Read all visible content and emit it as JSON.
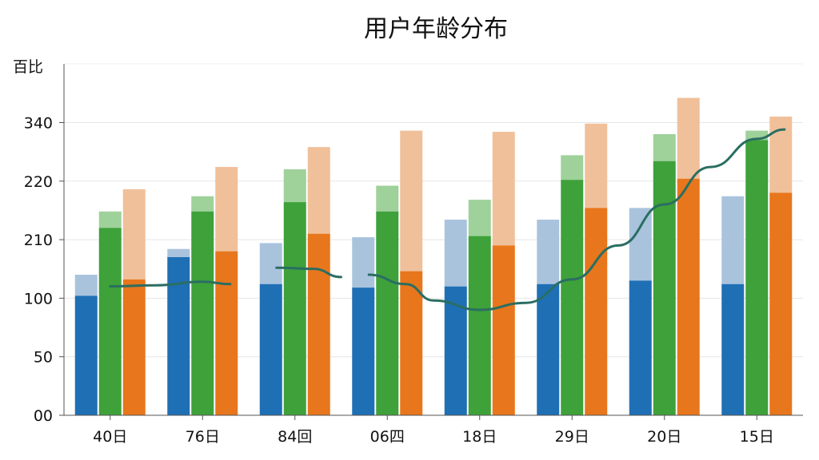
{
  "chart_data": {
    "type": "bar",
    "title": "用户年龄分布",
    "ylabel": "百比",
    "xlabel": "",
    "categories": [
      "40日",
      "76日",
      "84回",
      "06四",
      "18日",
      "29日",
      "20日",
      "15日"
    ],
    "y_tick_labels": [
      "00",
      "50",
      "100",
      "210",
      "220",
      "340"
    ],
    "grid": true,
    "legend": "none",
    "bar_groups": [
      {
        "color": "#1f6fb5",
        "light_color": "#a9c3dd",
        "values": [
          {
            "solid": 102,
            "total": 120
          },
          {
            "solid": 135,
            "total": 142
          },
          {
            "solid": 112,
            "total": 147
          },
          {
            "solid": 109,
            "total": 152
          },
          {
            "solid": 110,
            "total": 167
          },
          {
            "solid": 112,
            "total": 167
          },
          {
            "solid": 115,
            "total": 177
          },
          {
            "solid": 112,
            "total": 187
          }
        ]
      },
      {
        "color": "#3ea13a",
        "light_color": "#9fd19a",
        "values": [
          {
            "solid": 160,
            "total": 174
          },
          {
            "solid": 174,
            "total": 187
          },
          {
            "solid": 182,
            "total": 210
          },
          {
            "solid": 174,
            "total": 196
          },
          {
            "solid": 153,
            "total": 184
          },
          {
            "solid": 201,
            "total": 222
          },
          {
            "solid": 217,
            "total": 240
          },
          {
            "solid": 235,
            "total": 243
          }
        ]
      },
      {
        "color": "#e8761c",
        "light_color": "#f0c09a",
        "values": [
          {
            "solid": 116,
            "total": 193
          },
          {
            "solid": 140,
            "total": 212
          },
          {
            "solid": 155,
            "total": 229
          },
          {
            "solid": 123,
            "total": 243
          },
          {
            "solid": 145,
            "total": 242
          },
          {
            "solid": 177,
            "total": 249
          },
          {
            "solid": 202,
            "total": 271
          },
          {
            "solid": 190,
            "total": 255
          }
        ]
      }
    ],
    "trend_line": {
      "color": "#2a6e62",
      "segments": [
        [
          [
            0,
            110
          ],
          [
            0.5,
            111
          ],
          [
            1,
            114
          ],
          [
            1.3,
            112
          ]
        ],
        [
          [
            1.8,
            126
          ],
          [
            2.2,
            125
          ],
          [
            2.5,
            118
          ]
        ],
        [
          [
            2.8,
            120
          ],
          [
            3.2,
            112
          ],
          [
            3.5,
            98
          ],
          [
            4,
            90
          ],
          [
            4.5,
            96
          ],
          [
            5,
            116
          ],
          [
            5.5,
            145
          ],
          [
            6,
            180
          ],
          [
            6.5,
            212
          ],
          [
            7,
            236
          ],
          [
            7.3,
            244
          ]
        ]
      ]
    }
  }
}
